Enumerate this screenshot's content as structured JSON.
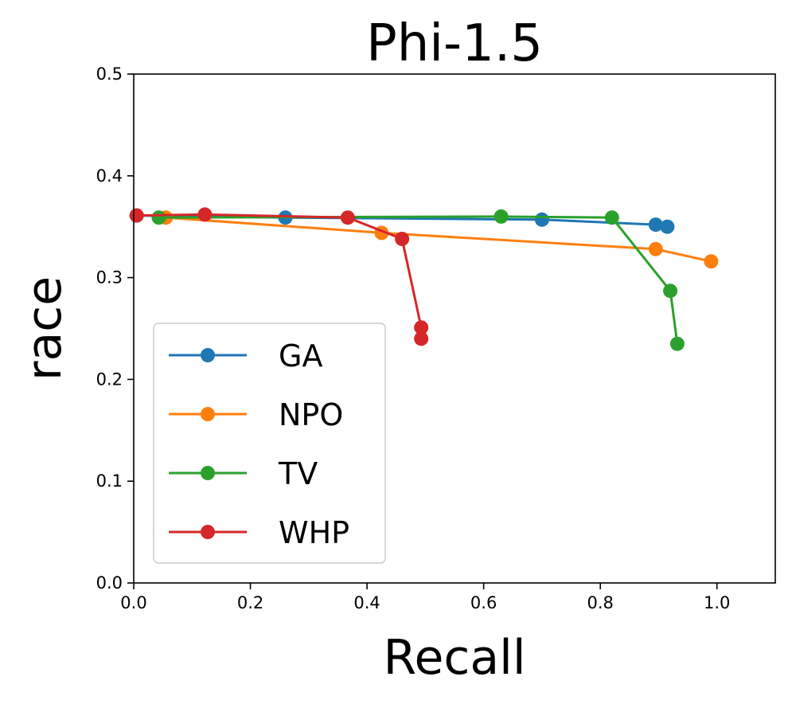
{
  "chart_data": {
    "type": "line",
    "title": "Phi-1.5",
    "xlabel": "Recall",
    "ylabel": "race",
    "xlim": [
      0.0,
      1.1
    ],
    "ylim": [
      0.0,
      0.5
    ],
    "xticks": [
      "0.0",
      "0.2",
      "0.4",
      "0.6",
      "0.8",
      "1.0"
    ],
    "yticks": [
      "0.0",
      "0.1",
      "0.2",
      "0.3",
      "0.4",
      "0.5"
    ],
    "grid": false,
    "legend_position": "lower-left",
    "series": [
      {
        "name": "GA",
        "color": "#1f77b4",
        "x": [
          0.005,
          0.26,
          0.7,
          0.895,
          0.915
        ],
        "y": [
          0.361,
          0.359,
          0.357,
          0.352,
          0.35
        ]
      },
      {
        "name": "NPO",
        "color": "#ff7f0e",
        "x": [
          0.055,
          0.425,
          0.895,
          0.99
        ],
        "y": [
          0.359,
          0.344,
          0.328,
          0.316
        ]
      },
      {
        "name": "TV",
        "color": "#2ca02c",
        "x": [
          0.043,
          0.63,
          0.82,
          0.92,
          0.932
        ],
        "y": [
          0.359,
          0.36,
          0.359,
          0.287,
          0.235
        ]
      },
      {
        "name": "WHP",
        "color": "#d62728",
        "x": [
          0.005,
          0.122,
          0.367,
          0.46,
          0.493,
          0.493
        ],
        "y": [
          0.361,
          0.362,
          0.359,
          0.338,
          0.251,
          0.24
        ]
      }
    ]
  }
}
